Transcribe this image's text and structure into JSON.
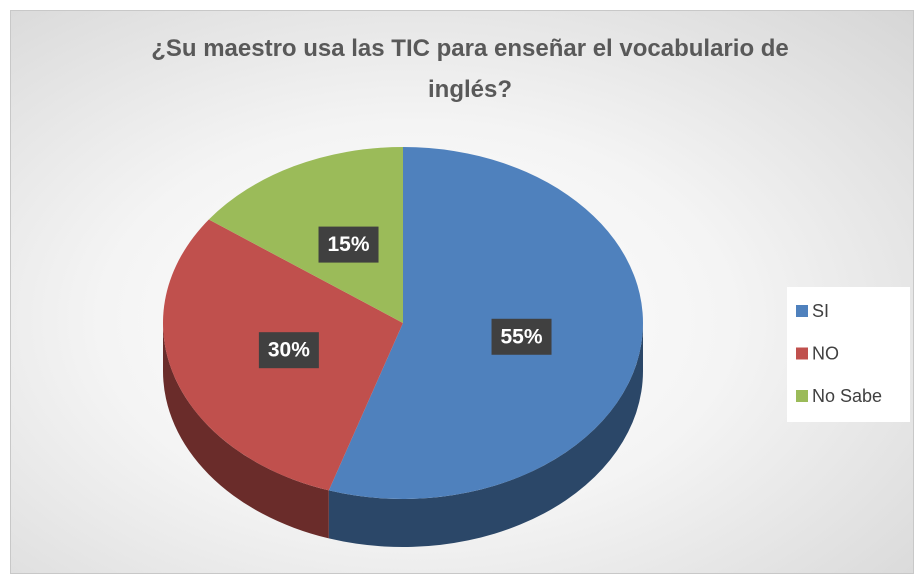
{
  "chart_data": {
    "type": "pie",
    "title": "¿Su maestro usa las TIC para enseñar el vocabulario de inglés?",
    "categories": [
      "SI",
      "NO",
      "No Sabe"
    ],
    "values": [
      55,
      30,
      15
    ],
    "value_labels": [
      "55%",
      "30%",
      "15%"
    ],
    "colors": [
      "#4f81bd",
      "#c0504d",
      "#9bbb59"
    ],
    "legend": "right"
  }
}
